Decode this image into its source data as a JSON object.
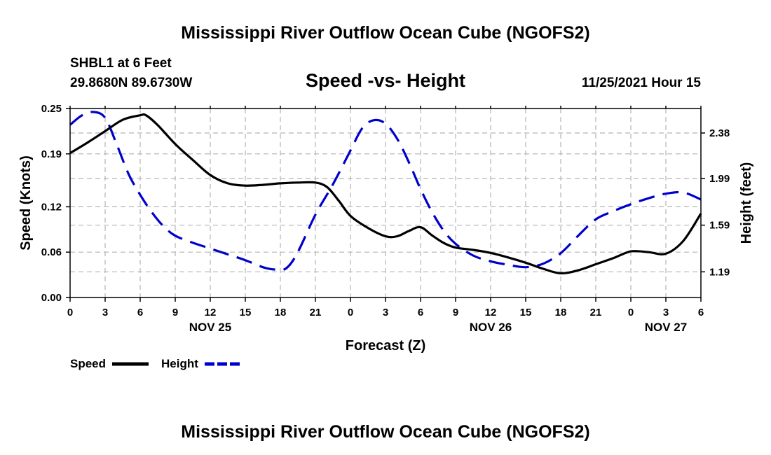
{
  "page": {
    "title": "Mississippi River Outflow Ocean Cube (NGOFS2)",
    "footer_title": "Mississippi River Outflow Ocean Cube (NGOFS2)"
  },
  "station": {
    "name": "SHBL1 at 6 Feet",
    "location": "29.8680N  89.6730W",
    "datetime": "11/25/2021 Hour 15"
  },
  "chart_data": {
    "type": "line",
    "title": "Speed -vs- Height",
    "xlabel": "Forecast (Z)",
    "ylabel_left": "Speed (Knots)",
    "ylabel_right": "Height (feet)",
    "x_unit": "hours from 0Z Nov 25 (Nov 24 21Z = -3)",
    "xlim": [
      -3,
      51
    ],
    "x_ticks": [
      {
        "x": -3,
        "label": "0"
      },
      {
        "x": 0,
        "label": "3"
      },
      {
        "x": 3,
        "label": "6"
      },
      {
        "x": 6,
        "label": "9"
      },
      {
        "x": 9,
        "label": "12"
      },
      {
        "x": 12,
        "label": "15"
      },
      {
        "x": 15,
        "label": "18"
      },
      {
        "x": 18,
        "label": "21"
      },
      {
        "x": 21,
        "label": "0"
      },
      {
        "x": 24,
        "label": "3"
      },
      {
        "x": 27,
        "label": "6"
      },
      {
        "x": 30,
        "label": "9"
      },
      {
        "x": 33,
        "label": "12"
      },
      {
        "x": 36,
        "label": "15"
      },
      {
        "x": 39,
        "label": "18"
      },
      {
        "x": 42,
        "label": "21"
      },
      {
        "x": 45,
        "label": "0"
      },
      {
        "x": 48,
        "label": "3"
      },
      {
        "x": 51,
        "label": "6"
      }
    ],
    "date_labels": [
      {
        "x": 9,
        "label": "NOV 25"
      },
      {
        "x": 33,
        "label": "NOV 26"
      },
      {
        "x": 48,
        "label": "NOV 27"
      }
    ],
    "ylim_left": [
      0,
      0.25
    ],
    "y_ticks_left": [
      "0.00",
      "0.06",
      "0.12",
      "0.19",
      "0.25"
    ],
    "ylim_right": [
      0.97,
      2.59
    ],
    "y_ticks_right": [
      "1.19",
      "1.59",
      "1.99",
      "2.38"
    ],
    "grid": true,
    "series": [
      {
        "name": "Speed",
        "axis": "left",
        "color": "#000000",
        "style": "solid",
        "x": [
          -3,
          -1.5,
          0,
          1.5,
          3,
          3.5,
          4.5,
          6,
          7.5,
          9,
          10.5,
          12,
          13.5,
          15,
          16.5,
          18,
          19,
          20,
          21,
          22.5,
          24,
          25,
          26,
          27,
          28,
          29,
          30,
          31.5,
          33,
          34.5,
          36,
          37.5,
          39,
          40.5,
          42,
          43.5,
          45,
          46.5,
          48,
          49.5,
          51
        ],
        "values": [
          0.191,
          0.205,
          0.22,
          0.235,
          0.241,
          0.241,
          0.228,
          0.203,
          0.182,
          0.162,
          0.151,
          0.148,
          0.149,
          0.151,
          0.152,
          0.152,
          0.146,
          0.128,
          0.108,
          0.092,
          0.081,
          0.081,
          0.088,
          0.093,
          0.082,
          0.072,
          0.066,
          0.063,
          0.059,
          0.053,
          0.046,
          0.038,
          0.032,
          0.036,
          0.044,
          0.052,
          0.061,
          0.06,
          0.058,
          0.075,
          0.111
        ]
      },
      {
        "name": "Height",
        "axis": "right",
        "color": "#0000cc",
        "style": "dashed",
        "x": [
          -3,
          -2,
          -1,
          0,
          1,
          2,
          3,
          4,
          5,
          6,
          7.5,
          9,
          10.5,
          12,
          13.5,
          14.5,
          15.5,
          16.5,
          18,
          19.5,
          21,
          22,
          23,
          24,
          25,
          26,
          27,
          28,
          29,
          30,
          31.5,
          33,
          34.5,
          36,
          37.5,
          39,
          40.5,
          42,
          43.5,
          45,
          46.5,
          48,
          49.5,
          51
        ],
        "values": [
          2.45,
          2.53,
          2.56,
          2.51,
          2.28,
          2.03,
          1.85,
          1.7,
          1.58,
          1.5,
          1.44,
          1.39,
          1.34,
          1.29,
          1.23,
          1.21,
          1.22,
          1.36,
          1.68,
          1.94,
          2.23,
          2.42,
          2.49,
          2.46,
          2.33,
          2.13,
          1.9,
          1.7,
          1.54,
          1.43,
          1.33,
          1.28,
          1.25,
          1.23,
          1.26,
          1.35,
          1.5,
          1.64,
          1.71,
          1.77,
          1.82,
          1.86,
          1.87,
          1.81
        ]
      }
    ],
    "legend": [
      {
        "label": "Speed",
        "color": "#000000",
        "style": "solid"
      },
      {
        "label": "Height",
        "color": "#0000cc",
        "style": "dashed"
      }
    ]
  }
}
